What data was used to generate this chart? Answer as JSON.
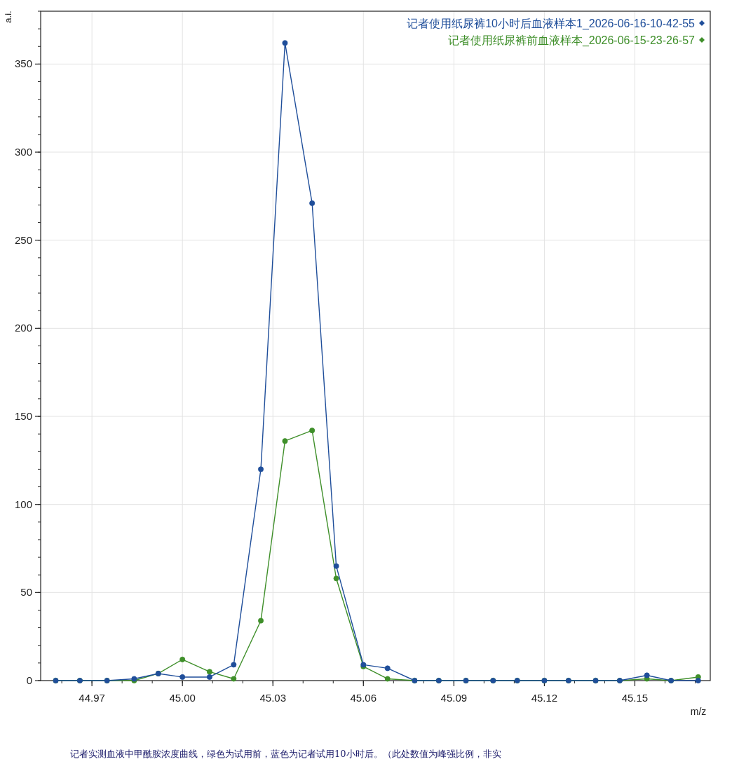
{
  "chart_data": {
    "type": "line",
    "xlabel": "m/z",
    "ylabel": "a.i.",
    "x": [
      44.958,
      44.966,
      44.975,
      44.984,
      44.992,
      45.0,
      45.009,
      45.017,
      45.026,
      45.034,
      45.043,
      45.051,
      45.06,
      45.068,
      45.077,
      45.085,
      45.094,
      45.103,
      45.111,
      45.12,
      45.128,
      45.137,
      45.145,
      45.154,
      45.162,
      45.171
    ],
    "series": [
      {
        "name": "记者使用纸尿裤10小时后血液样本1_2026-06-16-10-42-55",
        "color": "#1f4e9a",
        "values": [
          0,
          0,
          0,
          1,
          4,
          2,
          2,
          9,
          120,
          362,
          271,
          65,
          9,
          7,
          0,
          0,
          0,
          0,
          0,
          0,
          0,
          0,
          0,
          3,
          0,
          0
        ]
      },
      {
        "name": "记者使用纸尿裤前血液样本_2026-06-15-23-26-57",
        "color": "#3f8f2a",
        "values": [
          0,
          0,
          0,
          0,
          4,
          12,
          5,
          1,
          34,
          136,
          142,
          58,
          8,
          1,
          0,
          0,
          0,
          0,
          0,
          0,
          0,
          0,
          0,
          1,
          0,
          2
        ]
      }
    ],
    "xlim": [
      44.953,
      45.175
    ],
    "ylim": [
      0,
      380
    ],
    "xticks": [
      44.97,
      {
        "value": 45,
        "label": "45.00"
      },
      45.03,
      45.06,
      45.09,
      45.12,
      45.15
    ],
    "yticks": [
      0,
      50,
      100,
      150,
      200,
      250,
      300,
      350
    ],
    "grid": true,
    "legend": "top right",
    "marker": "circle",
    "line_style": "solid",
    "annotations": [
      "记者实测血液中甲酰胺浓度曲线，绿色为试用前，蓝色为记者试用10小时后。（此处数值为峰强比例，非实"
    ]
  }
}
